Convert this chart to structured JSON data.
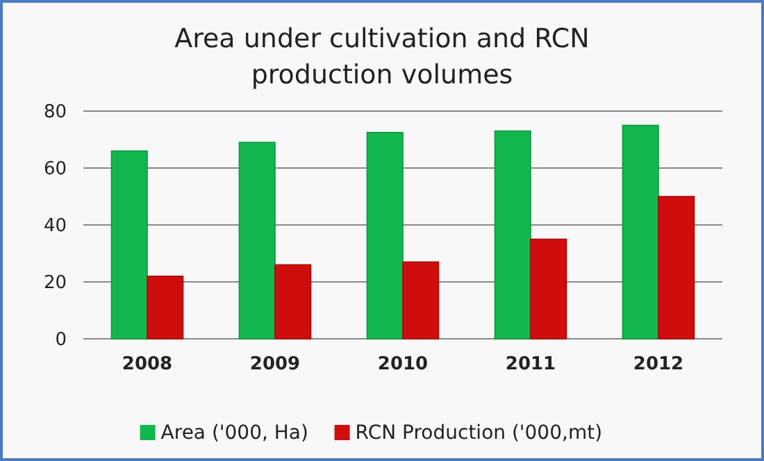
{
  "chart_data": {
    "type": "bar",
    "title": "Area under cultivation and RCN production volumes",
    "categories": [
      "2008",
      "2009",
      "2010",
      "2011",
      "2012"
    ],
    "series": [
      {
        "name": "Area ('000, Ha)",
        "color": "#12b84e",
        "values": [
          66,
          69,
          72.5,
          73,
          75
        ]
      },
      {
        "name": "RCN Production ('000,mt)",
        "color": "#d00d0d",
        "values": [
          22,
          26,
          27,
          35,
          50
        ]
      }
    ],
    "ylim": [
      0,
      80
    ],
    "yticks": [
      0,
      20,
      40,
      60,
      80
    ],
    "grid": "y",
    "legend": "bottom"
  }
}
